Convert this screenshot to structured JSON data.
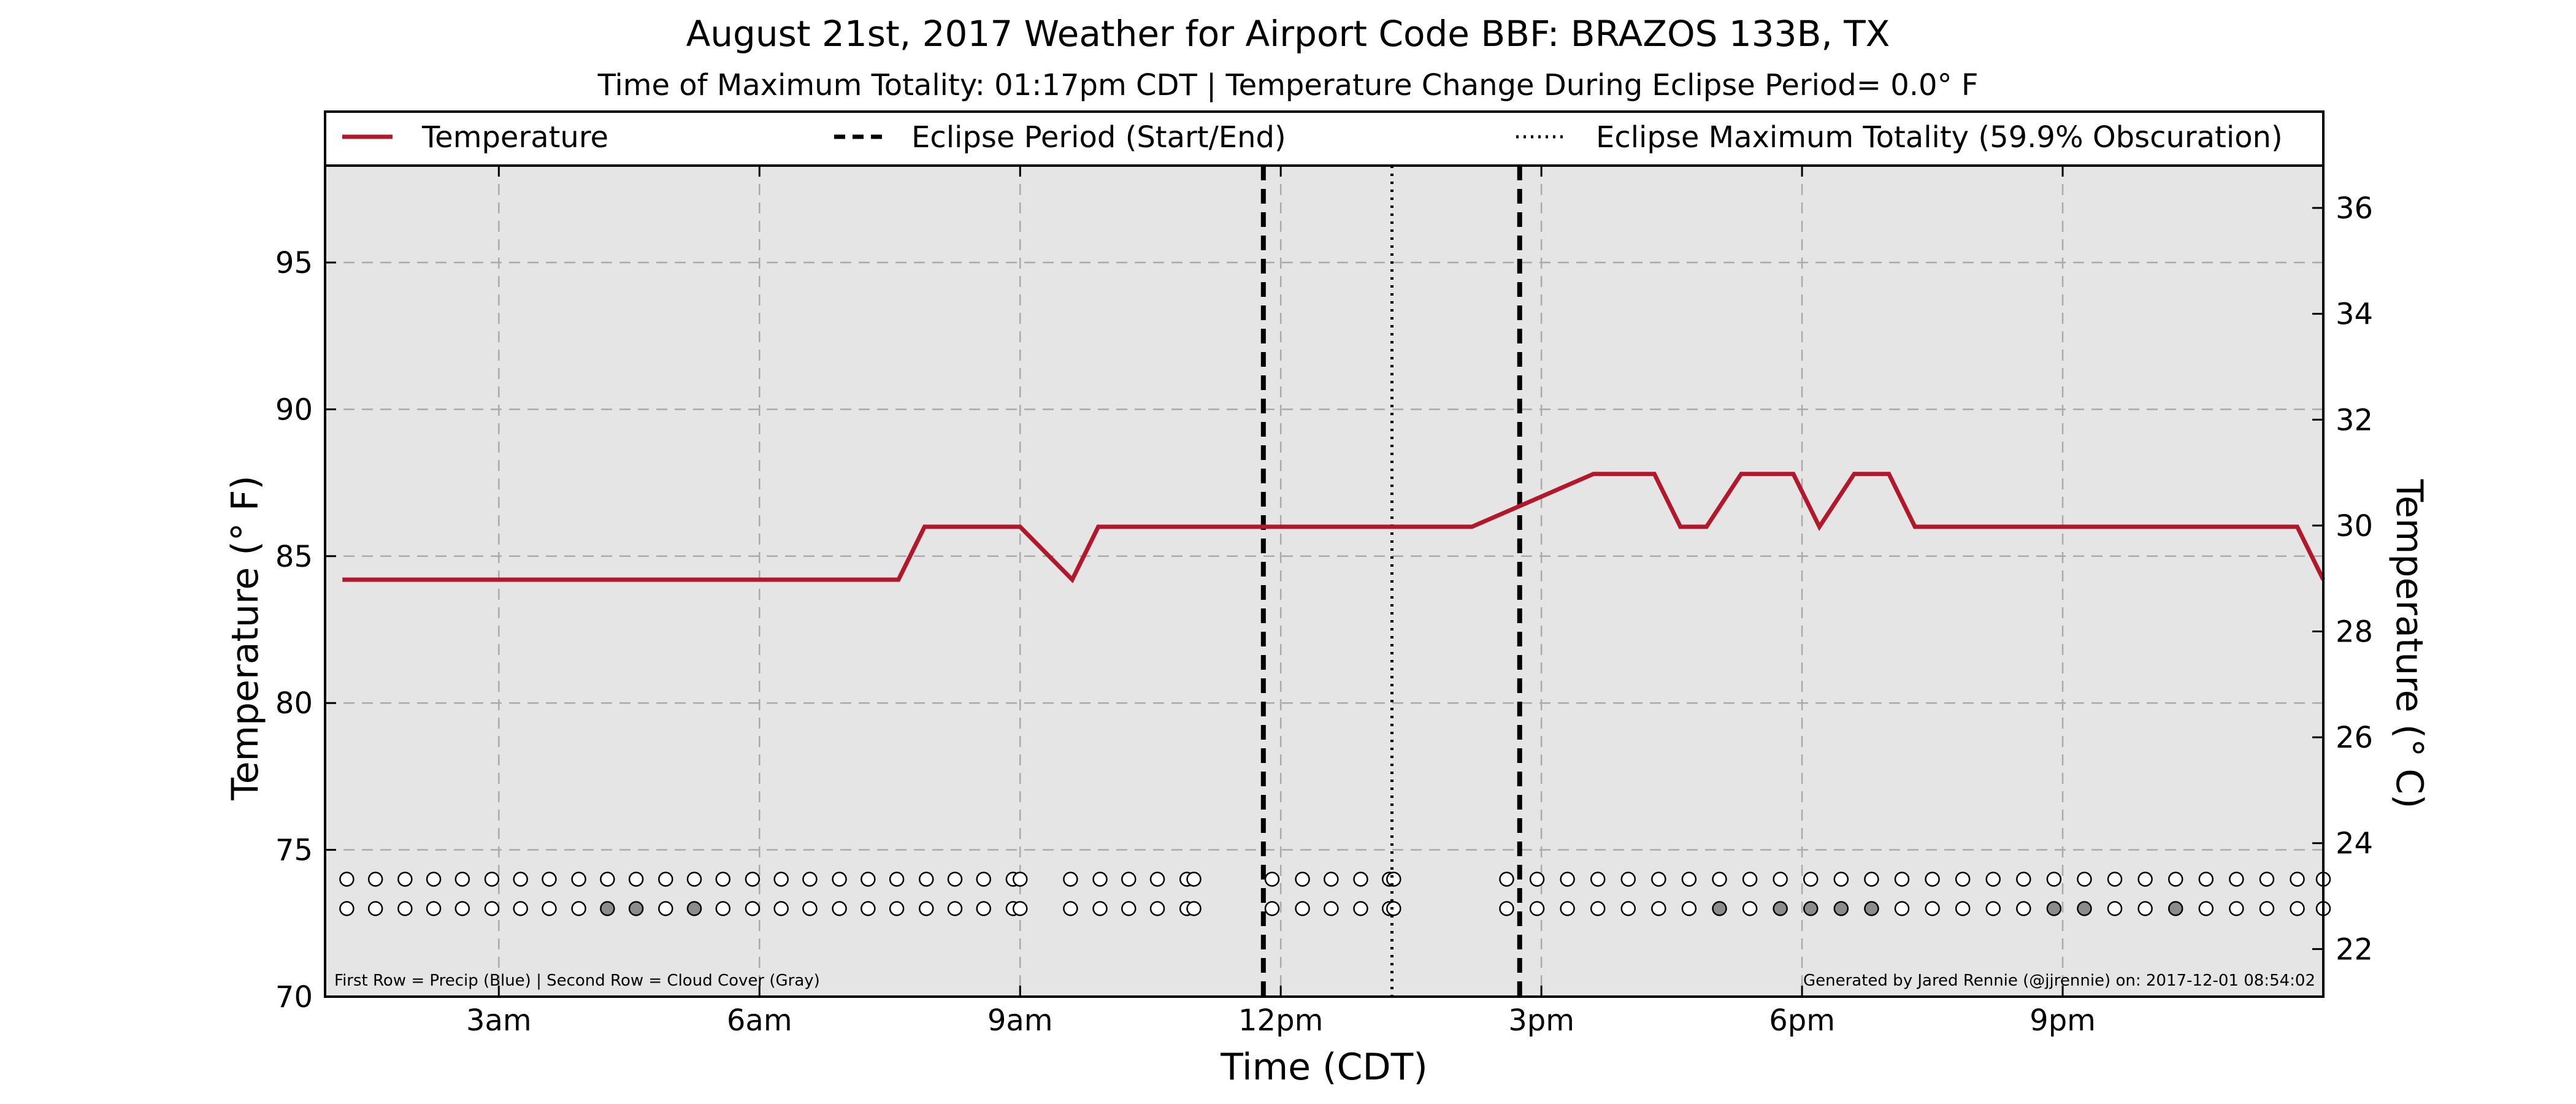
{
  "chart_data": {
    "type": "line",
    "title": "August 21st, 2017 Weather for Airport Code BBF: BRAZOS 133B, TX",
    "subtitle": "Time of Maximum Totality: 01:17pm CDT | Temperature Change During Eclipse Period= 0.0° F",
    "xlabel": "Time (CDT)",
    "ylabel": "Temperature (° F)",
    "ylabel_right": "Temperature (° C)",
    "xlim": [
      1.0,
      24.0
    ],
    "ylim": [
      70,
      98.3
    ],
    "ylim_right": [
      21.1,
      36.8
    ],
    "x_ticks": [
      {
        "x": 3,
        "label": "3am"
      },
      {
        "x": 6,
        "label": "6am"
      },
      {
        "x": 9,
        "label": "9am"
      },
      {
        "x": 12,
        "label": "12pm"
      },
      {
        "x": 15,
        "label": "3pm"
      },
      {
        "x": 18,
        "label": "6pm"
      },
      {
        "x": 21,
        "label": "9pm"
      }
    ],
    "y_ticks": [
      70,
      75,
      80,
      85,
      90,
      95
    ],
    "y_ticks_right": [
      22,
      24,
      26,
      28,
      30,
      32,
      34,
      36
    ],
    "grid": true,
    "legend_position": "top",
    "legend": [
      {
        "label": "Temperature",
        "style": "solid"
      },
      {
        "label": "Eclipse Period (Start/End)",
        "style": "dashed"
      },
      {
        "label": "Eclipse Maximum Totality (59.9% Obscuration)",
        "style": "dotted"
      }
    ],
    "series": [
      {
        "name": "Temperature",
        "color": "#b2182b",
        "x": [
          1.2,
          7.6,
          7.9,
          8.9,
          9.0,
          9.6,
          9.9,
          14.2,
          15.6,
          16.3,
          16.6,
          16.9,
          17.3,
          17.9,
          18.2,
          18.6,
          19.0,
          19.3,
          23.7,
          24.0
        ],
        "values": [
          84.2,
          84.2,
          86.0,
          86.0,
          86.0,
          84.2,
          86.0,
          86.0,
          87.8,
          87.8,
          86.0,
          86.0,
          87.8,
          87.8,
          86.0,
          87.8,
          87.8,
          86.0,
          86.0,
          84.2
        ]
      }
    ],
    "eclipse_start": 11.8,
    "eclipse_end": 14.75,
    "eclipse_max": 13.28,
    "dots": {
      "precip_row_y": 74.0,
      "cloud_row_y": 73.0,
      "x": [
        1.25,
        1.58,
        1.92,
        2.25,
        2.58,
        2.92,
        3.25,
        3.58,
        3.92,
        4.25,
        4.58,
        4.92,
        5.25,
        5.58,
        5.92,
        6.25,
        6.58,
        6.92,
        7.25,
        7.58,
        7.92,
        8.25,
        8.58,
        8.92,
        9.0,
        9.58,
        9.92,
        10.25,
        10.58,
        10.92,
        11.0,
        11.9,
        12.25,
        12.58,
        12.92,
        13.25,
        13.3,
        14.6,
        14.95,
        15.3,
        15.65,
        16.0,
        16.35,
        16.7,
        17.05,
        17.4,
        17.75,
        18.1,
        18.45,
        18.8,
        19.15,
        19.5,
        19.85,
        20.2,
        20.55,
        20.9,
        21.25,
        21.6,
        21.95,
        22.3,
        22.65,
        23.0,
        23.35,
        23.7,
        24.0
      ],
      "cloud_gray": [
        5.25,
        4.25,
        4.58,
        17.05,
        17.75,
        18.1,
        18.45,
        18.8,
        20.9,
        21.25,
        22.3
      ]
    },
    "footnote_left": "First Row = Precip (Blue) | Second Row = Cloud Cover (Gray)",
    "footnote_right": "Generated by Jared Rennie (@jjrennie) on: 2017-12-01 08:54:02"
  }
}
